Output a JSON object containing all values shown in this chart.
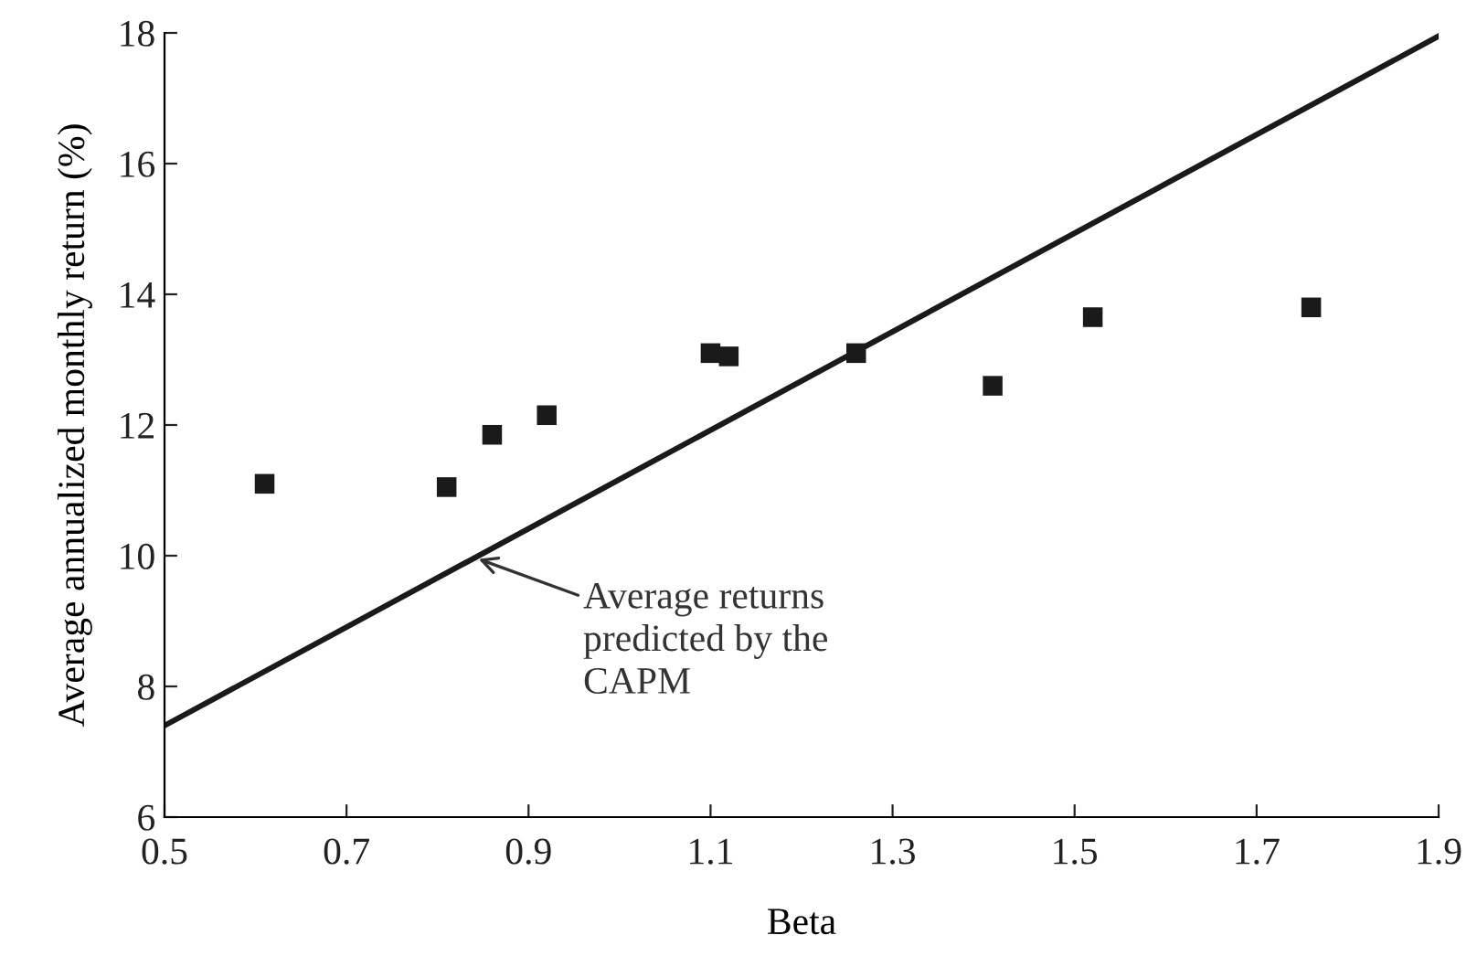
{
  "chart_data": {
    "type": "scatter",
    "xlabel": "Beta",
    "ylabel": "Average annualized monthly return (%)",
    "xlim": [
      0.5,
      1.9
    ],
    "xticks": [
      0.5,
      0.7,
      0.9,
      1.1,
      1.3,
      1.5,
      1.7,
      1.9
    ],
    "ylim": [
      6,
      18
    ],
    "yticks": [
      6,
      8,
      10,
      12,
      14,
      16,
      18
    ],
    "grid": false,
    "legend": false,
    "series": [
      {
        "color": "#1a1a1a",
        "marker": "square",
        "x": [
          0.61,
          0.81,
          0.86,
          0.92,
          1.1,
          1.12,
          1.26,
          1.41,
          1.52,
          1.76
        ],
        "values": [
          11.1,
          11.05,
          11.85,
          12.15,
          13.1,
          13.05,
          13.1,
          12.6,
          13.65,
          13.8
        ]
      },
      {
        "type": "line",
        "color": "#1a1a1a",
        "marker": "none",
        "line_style": "solid",
        "x": [
          0.5,
          1.9
        ],
        "values": [
          7.4,
          17.95
        ]
      }
    ],
    "annotations": [
      {
        "text": "Average returns\npredicted by the\nCAPM",
        "x": 0.845,
        "y": 9.95
      }
    ]
  }
}
